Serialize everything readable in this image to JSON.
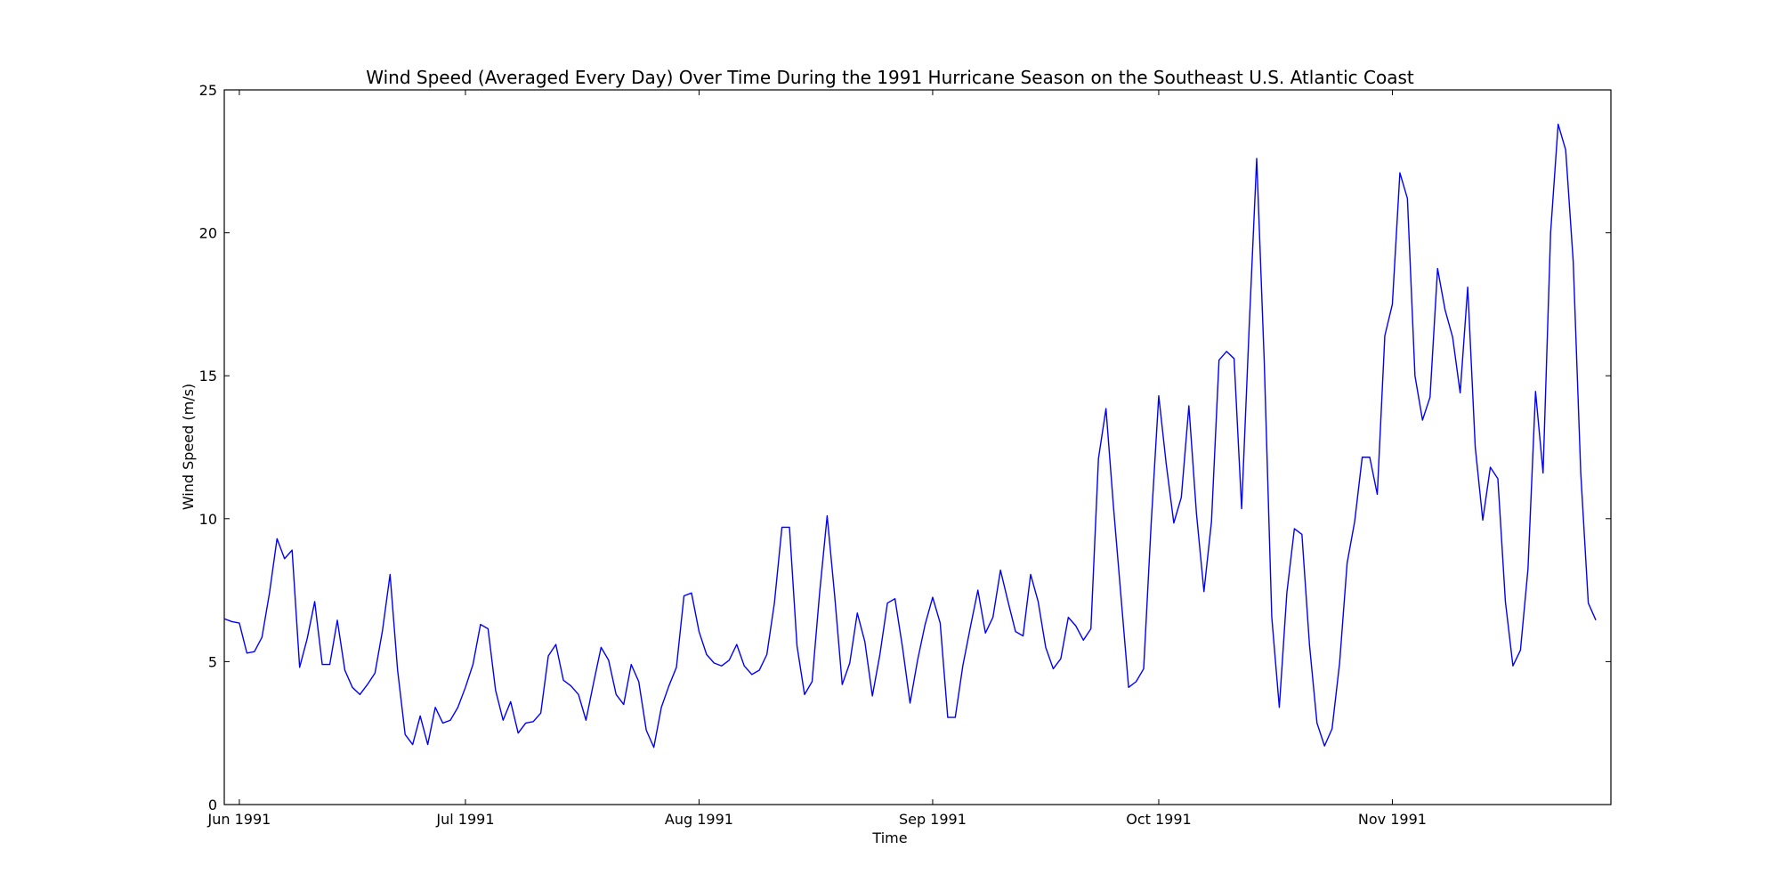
{
  "chart_data": {
    "type": "line",
    "title": "Wind Speed (Averaged Every Day) Over Time During the 1991 Hurricane Season on the Southeast U.S. Atlantic Coast",
    "xlabel": "Time",
    "ylabel": "Wind Speed (m/s)",
    "xlim": [
      "1991-05-30",
      "1991-11-30"
    ],
    "ylim": [
      0,
      25
    ],
    "yticks": [
      0,
      5,
      10,
      15,
      20,
      25
    ],
    "xticks": [
      {
        "date": "1991-06-01",
        "label": "Jun 1991"
      },
      {
        "date": "1991-07-01",
        "label": "Jul 1991"
      },
      {
        "date": "1991-08-01",
        "label": "Aug 1991"
      },
      {
        "date": "1991-09-01",
        "label": "Sep 1991"
      },
      {
        "date": "1991-10-01",
        "label": "Oct 1991"
      },
      {
        "date": "1991-11-01",
        "label": "Nov 1991"
      }
    ],
    "grid": false,
    "series": [
      {
        "color": "#0000ff",
        "x_start": "1991-05-30",
        "x_step_days": 1,
        "values": [
          6.5,
          6.4,
          6.35,
          5.3,
          5.35,
          5.85,
          7.4,
          9.3,
          8.6,
          8.9,
          4.8,
          5.8,
          7.1,
          4.9,
          4.9,
          6.45,
          4.7,
          4.1,
          3.85,
          4.2,
          4.6,
          6.1,
          8.05,
          4.7,
          2.45,
          2.1,
          3.1,
          2.1,
          3.4,
          2.85,
          2.95,
          3.4,
          4.1,
          4.9,
          6.3,
          6.15,
          4.0,
          2.95,
          3.6,
          2.5,
          2.85,
          2.9,
          3.2,
          5.2,
          5.6,
          4.35,
          4.15,
          3.85,
          2.95,
          4.25,
          5.5,
          5.05,
          3.85,
          3.5,
          4.9,
          4.3,
          2.6,
          2.0,
          3.4,
          4.15,
          4.8,
          7.3,
          7.4,
          6.05,
          5.25,
          4.95,
          4.85,
          5.05,
          5.6,
          4.85,
          4.55,
          4.7,
          5.25,
          7.05,
          9.7,
          9.7,
          5.55,
          3.85,
          4.3,
          7.4,
          10.1,
          7.3,
          4.2,
          4.95,
          6.7,
          5.7,
          3.8,
          5.25,
          7.05,
          7.2,
          5.5,
          3.55,
          5.05,
          6.3,
          7.25,
          6.35,
          3.05,
          3.05,
          4.85,
          6.2,
          7.5,
          6.0,
          6.55,
          8.2,
          7.1,
          6.05,
          5.9,
          8.05,
          7.1,
          5.5,
          4.75,
          5.1,
          6.55,
          6.25,
          5.75,
          6.15,
          12.1,
          13.85,
          10.4,
          7.25,
          4.1,
          4.3,
          4.75,
          9.85,
          14.3,
          11.9,
          9.85,
          10.75,
          13.95,
          10.2,
          7.45,
          9.9,
          15.55,
          15.85,
          15.6,
          10.35,
          16.7,
          22.6,
          15.5,
          6.55,
          3.4,
          7.4,
          9.65,
          9.45,
          5.6,
          2.85,
          2.05,
          2.65,
          4.95,
          8.45,
          9.9,
          12.15,
          12.15,
          10.85,
          16.4,
          17.5,
          22.1,
          21.2,
          15.0,
          13.45,
          14.25,
          18.75,
          17.3,
          16.35,
          14.4,
          18.1,
          12.5,
          9.95,
          11.8,
          11.4,
          7.1,
          4.85,
          5.4,
          8.25,
          14.45,
          11.6,
          20.0,
          23.8,
          22.9,
          19.0,
          11.6,
          7.05,
          6.45
        ]
      }
    ]
  }
}
